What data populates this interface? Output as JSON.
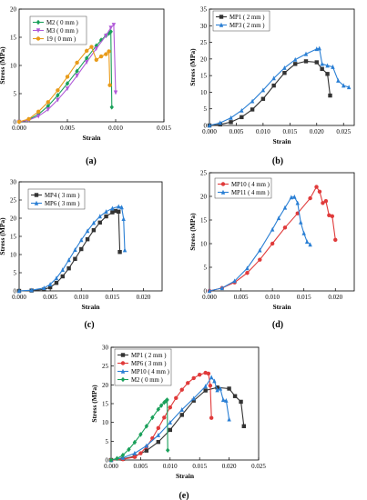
{
  "chart_data": [
    {
      "type": "line",
      "panel_label": "(a)",
      "xlabel": "Strain",
      "ylabel": "Stress (MPa)",
      "xlim": [
        0,
        0.015
      ],
      "ylim": [
        0,
        20
      ],
      "xticks": [
        0.0,
        0.005,
        0.01,
        0.015
      ],
      "yticks": [
        0,
        5,
        10,
        15,
        20
      ],
      "xtick_labels": [
        "0.000",
        "0.005",
        "0.010",
        "0.015"
      ],
      "ytick_labels": [
        "0",
        "5",
        "10",
        "15",
        "20"
      ],
      "legend_position": "top-left",
      "series": [
        {
          "name": "M2 ( 0 mm )",
          "color": "#1aa05a",
          "marker": "diamond",
          "x": [
            0,
            0.001,
            0.002,
            0.003,
            0.004,
            0.005,
            0.006,
            0.007,
            0.008,
            0.0085,
            0.009,
            0.0093,
            0.0095,
            0.0096
          ],
          "y": [
            0,
            0.4,
            1.3,
            2.8,
            4.7,
            6.8,
            9.0,
            11.3,
            13.5,
            14.5,
            15.3,
            15.7,
            16.0,
            2.6
          ]
        },
        {
          "name": "M3 ( 0 mm )",
          "color": "#b05ad8",
          "marker": "triangle-down",
          "x": [
            0,
            0.001,
            0.002,
            0.003,
            0.004,
            0.005,
            0.006,
            0.007,
            0.008,
            0.009,
            0.0095,
            0.0098,
            0.01
          ],
          "y": [
            0,
            0.3,
            1.0,
            2.2,
            3.9,
            5.9,
            8.2,
            10.6,
            13.0,
            15.3,
            16.7,
            17.2,
            5.2
          ]
        },
        {
          "name": "19 ( 0 mm )",
          "color": "#e89b1a",
          "marker": "circle",
          "x": [
            0,
            0.001,
            0.002,
            0.003,
            0.004,
            0.005,
            0.006,
            0.007,
            0.0075,
            0.008,
            0.0085,
            0.009,
            0.0093,
            0.0094
          ],
          "y": [
            0,
            0.5,
            1.8,
            3.5,
            5.6,
            8.0,
            10.5,
            12.6,
            13.3,
            11.0,
            11.6,
            12.0,
            12.5,
            6.5
          ]
        }
      ]
    },
    {
      "type": "line",
      "panel_label": "(b)",
      "xlabel": "Strain",
      "ylabel": "Stress (MPa)",
      "xlim": [
        0,
        0.027
      ],
      "ylim": [
        0,
        35
      ],
      "xticks": [
        0.0,
        0.005,
        0.01,
        0.015,
        0.02,
        0.025
      ],
      "yticks": [
        0,
        5,
        10,
        15,
        20,
        25,
        30,
        35
      ],
      "xtick_labels": [
        "0.000",
        "0.005",
        "0.010",
        "0.015",
        "0.020",
        "0.025"
      ],
      "ytick_labels": [
        "0",
        "5",
        "10",
        "15",
        "20",
        "25",
        "30",
        "35"
      ],
      "legend_position": "top-left",
      "series": [
        {
          "name": "MP1 ( 2 mm )",
          "color": "#333333",
          "marker": "square",
          "x": [
            0,
            0.002,
            0.004,
            0.006,
            0.008,
            0.01,
            0.012,
            0.014,
            0.016,
            0.018,
            0.02,
            0.021,
            0.022,
            0.0225
          ],
          "y": [
            0,
            0.3,
            1.0,
            2.5,
            4.8,
            8.0,
            12.0,
            15.8,
            18.5,
            19.3,
            19.0,
            17.0,
            15.5,
            9.0
          ]
        },
        {
          "name": "MP3 ( 2 mm )",
          "color": "#2a7fd4",
          "marker": "triangle",
          "x": [
            0,
            0.002,
            0.004,
            0.006,
            0.008,
            0.01,
            0.012,
            0.014,
            0.016,
            0.018,
            0.02,
            0.0205,
            0.021,
            0.022,
            0.023,
            0.024,
            0.025,
            0.026
          ],
          "y": [
            0,
            0.8,
            2.3,
            4.5,
            7.3,
            10.6,
            14.2,
            17.3,
            19.8,
            21.5,
            23.0,
            23.2,
            18.5,
            18.0,
            17.6,
            13.5,
            12.0,
            11.5
          ]
        }
      ]
    },
    {
      "type": "line",
      "panel_label": "(c)",
      "xlabel": "Strain",
      "ylabel": "Stress (MPa)",
      "xlim": [
        0,
        0.023
      ],
      "ylim": [
        0,
        30
      ],
      "xticks": [
        0.0,
        0.005,
        0.01,
        0.015,
        0.02
      ],
      "yticks": [
        0,
        5,
        10,
        15,
        20,
        25,
        30
      ],
      "xtick_labels": [
        "0.000",
        "0.005",
        "0.010",
        "0.015",
        "0.020"
      ],
      "ytick_labels": [
        "0",
        "5",
        "10",
        "15",
        "20",
        "25",
        "30"
      ],
      "legend_position": "top-left",
      "series": [
        {
          "name": "MP4 ( 3 mm )",
          "color": "#333333",
          "marker": "square",
          "x": [
            0,
            0.002,
            0.004,
            0.005,
            0.006,
            0.007,
            0.008,
            0.009,
            0.01,
            0.011,
            0.012,
            0.013,
            0.014,
            0.015,
            0.0155,
            0.016,
            0.0162
          ],
          "y": [
            0,
            0.1,
            0.4,
            1.0,
            2.2,
            4.0,
            6.2,
            8.8,
            11.5,
            14.2,
            16.7,
            18.8,
            20.5,
            21.6,
            22.0,
            21.8,
            10.7
          ]
        },
        {
          "name": "MP6 ( 3 mm )",
          "color": "#2a7fd4",
          "marker": "triangle",
          "x": [
            0,
            0.002,
            0.004,
            0.005,
            0.006,
            0.007,
            0.008,
            0.009,
            0.01,
            0.011,
            0.012,
            0.013,
            0.014,
            0.015,
            0.016,
            0.0165,
            0.0168,
            0.017
          ],
          "y": [
            0,
            0.2,
            0.8,
            1.8,
            3.5,
            5.8,
            8.5,
            11.3,
            14.0,
            16.5,
            18.7,
            20.5,
            21.8,
            22.7,
            23.2,
            23.0,
            19.8,
            11.2
          ]
        }
      ]
    },
    {
      "type": "line",
      "panel_label": "(d)",
      "xlabel": "Strain",
      "ylabel": "Stress (MPa)",
      "xlim": [
        0,
        0.023
      ],
      "ylim": [
        0,
        25
      ],
      "xticks": [
        0.0,
        0.005,
        0.01,
        0.015,
        0.02
      ],
      "yticks": [
        0,
        5,
        10,
        15,
        20,
        25
      ],
      "xtick_labels": [
        "0.000",
        "0.005",
        "0.010",
        "0.015",
        "0.020"
      ],
      "ytick_labels": [
        "0",
        "5",
        "10",
        "15",
        "20",
        "25"
      ],
      "legend_position": "top-left",
      "series": [
        {
          "name": "MP10 ( 4 mm )",
          "color": "#e03a3a",
          "marker": "circle",
          "x": [
            0,
            0.002,
            0.004,
            0.006,
            0.008,
            0.01,
            0.012,
            0.014,
            0.016,
            0.017,
            0.0175,
            0.018,
            0.0185,
            0.019,
            0.0195,
            0.02
          ],
          "y": [
            0,
            0.6,
            1.8,
            3.8,
            6.6,
            10.0,
            13.4,
            16.4,
            19.6,
            22.0,
            21.0,
            18.6,
            19.0,
            16.0,
            15.8,
            10.8
          ]
        },
        {
          "name": "MP11 ( 4 mm )",
          "color": "#2a7fd4",
          "marker": "triangle",
          "x": [
            0,
            0.002,
            0.004,
            0.006,
            0.008,
            0.01,
            0.011,
            0.012,
            0.013,
            0.0135,
            0.014,
            0.0145,
            0.015,
            0.0155,
            0.016
          ],
          "y": [
            0,
            0.6,
            2.1,
            4.8,
            8.6,
            13.0,
            15.4,
            17.6,
            19.8,
            19.9,
            18.6,
            14.5,
            12.2,
            10.4,
            9.8
          ]
        }
      ]
    },
    {
      "type": "line",
      "panel_label": "(e)",
      "xlabel": "Strain",
      "ylabel": "Stress (MPa)",
      "xlim": [
        0,
        0.025
      ],
      "ylim": [
        0,
        30
      ],
      "xticks": [
        0.0,
        0.005,
        0.01,
        0.015,
        0.02,
        0.025
      ],
      "yticks": [
        0,
        5,
        10,
        15,
        20,
        25,
        30
      ],
      "xtick_labels": [
        "0.000",
        "0.005",
        "0.010",
        "0.015",
        "0.020",
        "0.025"
      ],
      "ytick_labels": [
        "0",
        "5",
        "10",
        "15",
        "20",
        "25",
        "30"
      ],
      "legend_position": "top-left",
      "series": [
        {
          "name": "MP1 ( 2 mm )",
          "color": "#333333",
          "marker": "square",
          "x": [
            0,
            0.002,
            0.004,
            0.006,
            0.008,
            0.01,
            0.012,
            0.014,
            0.016,
            0.018,
            0.02,
            0.021,
            0.022,
            0.0225
          ],
          "y": [
            0,
            0.3,
            1.0,
            2.5,
            4.8,
            8.0,
            12.0,
            15.8,
            18.5,
            19.3,
            19.0,
            17.0,
            15.5,
            9.0
          ]
        },
        {
          "name": "MP6 ( 3 mm )",
          "color": "#e03a3a",
          "marker": "circle",
          "x": [
            0,
            0.002,
            0.004,
            0.005,
            0.006,
            0.007,
            0.008,
            0.009,
            0.01,
            0.011,
            0.012,
            0.013,
            0.014,
            0.015,
            0.016,
            0.0165,
            0.0168,
            0.017
          ],
          "y": [
            0,
            0.2,
            0.8,
            1.8,
            3.5,
            5.8,
            8.5,
            11.3,
            14.0,
            16.5,
            18.7,
            20.5,
            21.8,
            22.7,
            23.2,
            23.0,
            19.8,
            11.2
          ]
        },
        {
          "name": "MP10 ( 4 mm )",
          "color": "#2a7fd4",
          "marker": "triangle",
          "x": [
            0,
            0.002,
            0.004,
            0.006,
            0.008,
            0.01,
            0.012,
            0.014,
            0.016,
            0.017,
            0.0175,
            0.018,
            0.0185,
            0.019,
            0.0195,
            0.02
          ],
          "y": [
            0,
            0.6,
            1.8,
            3.8,
            6.6,
            10.0,
            13.4,
            16.4,
            19.6,
            22.0,
            21.0,
            18.6,
            19.0,
            16.0,
            15.8,
            10.8
          ]
        },
        {
          "name": "M2 ( 0 mm )",
          "color": "#1aa05a",
          "marker": "diamond",
          "x": [
            0,
            0.001,
            0.002,
            0.003,
            0.004,
            0.005,
            0.006,
            0.007,
            0.008,
            0.0085,
            0.009,
            0.0093,
            0.0095,
            0.0096
          ],
          "y": [
            0,
            0.4,
            1.3,
            2.8,
            4.7,
            6.8,
            9.0,
            11.3,
            13.5,
            14.5,
            15.3,
            15.7,
            16.0,
            2.6
          ]
        }
      ]
    }
  ]
}
